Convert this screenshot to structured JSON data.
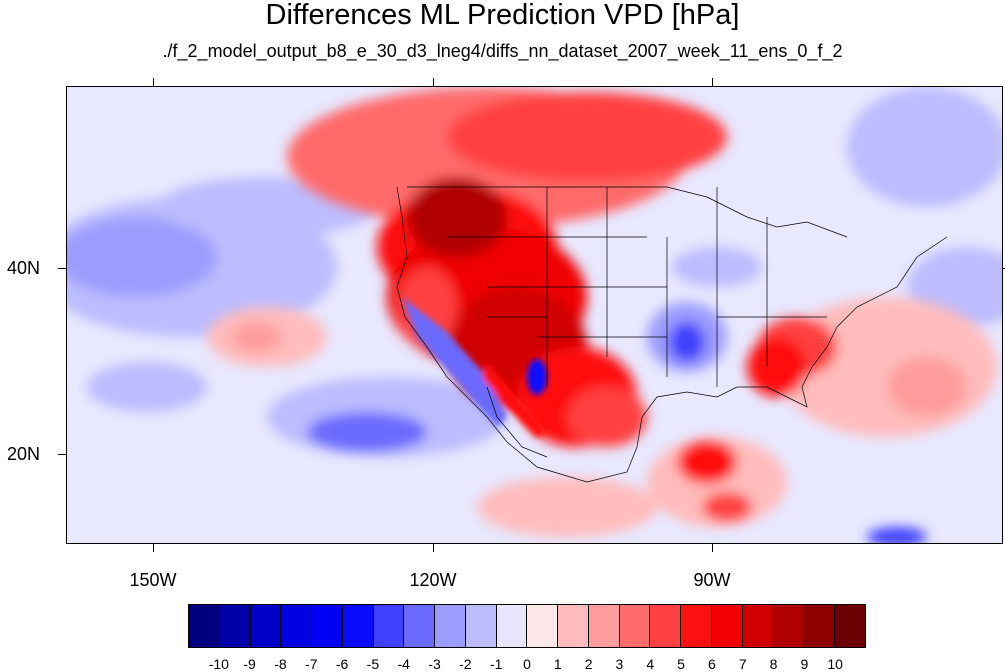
{
  "title": "Differences ML Prediction VPD [hPa]",
  "subtitle": "./f_2_model_output_b8_e_30_d3_lneg4/diffs_nn_dataset_2007_week_11_ens_0_f_2",
  "lon_labels": [
    "150W",
    "120W",
    "90W"
  ],
  "lat_labels": [
    "40N",
    "20N"
  ],
  "colorbar": {
    "labels": [
      "-10",
      "-9",
      "-8",
      "-7",
      "-6",
      "-5",
      "-4",
      "-3",
      "-2",
      "-1",
      "0",
      "1",
      "2",
      "3",
      "4",
      "5",
      "6",
      "7",
      "8",
      "9",
      "10"
    ],
    "colors": [
      "#00007f",
      "#0000a6",
      "#0000c8",
      "#0000e0",
      "#0000f5",
      "#0a0aff",
      "#4040ff",
      "#6a6aff",
      "#9c9cff",
      "#bcbcff",
      "#e6e6ff",
      "#ffe8e8",
      "#ffbcbc",
      "#ff9c9c",
      "#ff6a6a",
      "#ff4040",
      "#ff1010",
      "#f00000",
      "#d00000",
      "#b00000",
      "#8c0000",
      "#6a0000"
    ]
  }
}
